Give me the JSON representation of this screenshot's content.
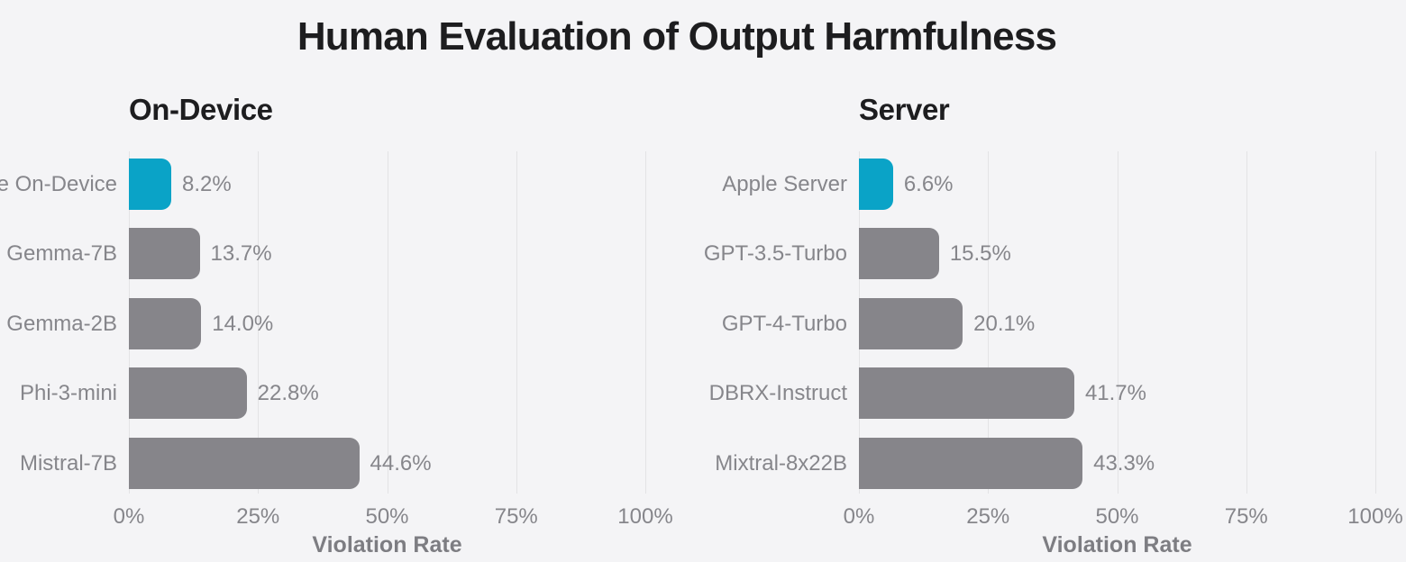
{
  "title": "Human Evaluation of Output Harmfulness",
  "colors": {
    "background": "#F4F4F6",
    "heading_text": "#1D1D1F",
    "muted_text": "#86868B",
    "axis_label_text": "#7D7D82",
    "gridline": "#E3E3E5",
    "highlight_bar": "#0AA3C7",
    "default_bar": "#86858A"
  },
  "axis": {
    "label": "Violation Rate",
    "tick_labels": [
      "0%",
      "25%",
      "50%",
      "75%",
      "100%"
    ],
    "tick_values": [
      0,
      25,
      50,
      75,
      100
    ],
    "max": 100
  },
  "chart_data": [
    {
      "type": "bar",
      "orientation": "horizontal",
      "title": "On-Device",
      "xlabel": "Violation Rate",
      "xlim": [
        0,
        100
      ],
      "x_ticks": [
        "0%",
        "25%",
        "50%",
        "75%",
        "100%"
      ],
      "grid": true,
      "highlight_index": 0,
      "categories": [
        "Apple On-Device",
        "Gemma-7B",
        "Gemma-2B",
        "Phi-3-mini",
        "Mistral-7B"
      ],
      "values": [
        8.2,
        13.7,
        14.0,
        22.8,
        44.6
      ],
      "value_labels": [
        "8.2%",
        "13.7%",
        "14.0%",
        "22.8%",
        "44.6%"
      ]
    },
    {
      "type": "bar",
      "orientation": "horizontal",
      "title": "Server",
      "xlabel": "Violation Rate",
      "xlim": [
        0,
        100
      ],
      "x_ticks": [
        "0%",
        "25%",
        "50%",
        "75%",
        "100%"
      ],
      "grid": true,
      "highlight_index": 0,
      "categories": [
        "Apple Server",
        "GPT-3.5-Turbo",
        "GPT-4-Turbo",
        "DBRX-Instruct",
        "Mixtral-8x22B"
      ],
      "values": [
        6.6,
        15.5,
        20.1,
        41.7,
        43.3
      ],
      "value_labels": [
        "6.6%",
        "15.5%",
        "20.1%",
        "41.7%",
        "43.3%"
      ]
    }
  ]
}
